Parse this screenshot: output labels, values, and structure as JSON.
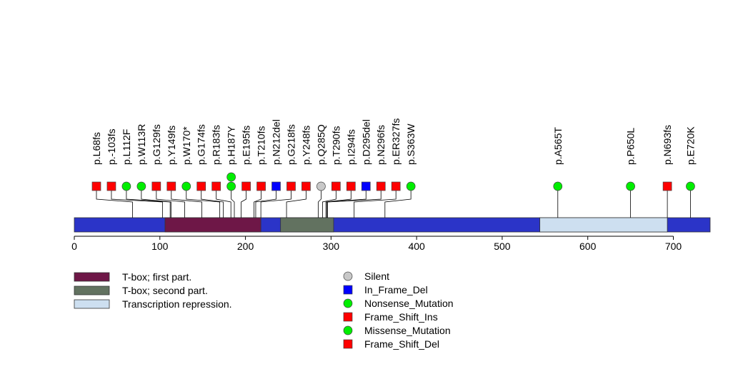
{
  "chart_data": {
    "type": "lollipop",
    "title": "",
    "xlabel": "",
    "ylabel": "",
    "protein_length": 743,
    "xlim": [
      0,
      743
    ],
    "x_ticks": [
      0,
      100,
      200,
      300,
      400,
      500,
      600,
      700
    ],
    "backbone_color": "#2b34c8",
    "domains": [
      {
        "name": "T-box; first part.",
        "start": 106,
        "end": 218,
        "color": "#6e1747"
      },
      {
        "name": "T-box; second part.",
        "start": 241,
        "end": 303,
        "color": "#627260"
      },
      {
        "name": "Transcription repression.",
        "start": 544,
        "end": 693,
        "color": "#cddff0"
      }
    ],
    "mutations": [
      {
        "label": "p.L68fs",
        "position": 68,
        "type": "Frame_Shift_Del",
        "count": 1
      },
      {
        "label": "p.-103fs",
        "position": 103,
        "type": "Frame_Shift_Del",
        "count": 1
      },
      {
        "label": "p.L112F",
        "position": 112,
        "type": "Missense_Mutation",
        "count": 1
      },
      {
        "label": "p.W113R",
        "position": 113,
        "type": "Missense_Mutation",
        "count": 1
      },
      {
        "label": "p.G129fs",
        "position": 129,
        "type": "Frame_Shift_Del",
        "count": 1
      },
      {
        "label": "p.Y149fs",
        "position": 149,
        "type": "Frame_Shift_Del",
        "count": 1
      },
      {
        "label": "p.W170*",
        "position": 170,
        "type": "Nonsense_Mutation",
        "count": 1
      },
      {
        "label": "p.G174fs",
        "position": 174,
        "type": "Frame_Shift_Del",
        "count": 1
      },
      {
        "label": "p.R183fs",
        "position": 183,
        "type": "Frame_Shift_Del",
        "count": 1
      },
      {
        "label": "p.H187Y",
        "position": 187,
        "type": "Missense_Mutation",
        "count": 2
      },
      {
        "label": "p.E195fs",
        "position": 195,
        "type": "Frame_Shift_Del",
        "count": 1
      },
      {
        "label": "p.T210fs",
        "position": 210,
        "type": "Frame_Shift_Del",
        "count": 1
      },
      {
        "label": "p.N212del",
        "position": 212,
        "type": "In_Frame_Del",
        "count": 1
      },
      {
        "label": "p.G218fs",
        "position": 218,
        "type": "Frame_Shift_Del",
        "count": 1
      },
      {
        "label": "p.Y248fs",
        "position": 248,
        "type": "Frame_Shift_Del",
        "count": 1
      },
      {
        "label": "p.Q285Q",
        "position": 285,
        "type": "Silent",
        "count": 1
      },
      {
        "label": "p.T290fs",
        "position": 290,
        "type": "Frame_Shift_Del",
        "count": 1
      },
      {
        "label": "p.I294fs",
        "position": 294,
        "type": "Frame_Shift_Del",
        "count": 1
      },
      {
        "label": "p.D295del",
        "position": 295,
        "type": "In_Frame_Del",
        "count": 1
      },
      {
        "label": "p.N296fs",
        "position": 296,
        "type": "Frame_Shift_Del",
        "count": 1
      },
      {
        "label": "p.ER327fs",
        "position": 327,
        "type": "Frame_Shift_Del",
        "count": 1
      },
      {
        "label": "p.S363W",
        "position": 363,
        "type": "Missense_Mutation",
        "count": 1
      },
      {
        "label": "p.A565T",
        "position": 565,
        "type": "Missense_Mutation",
        "count": 1
      },
      {
        "label": "p.P650L",
        "position": 650,
        "type": "Missense_Mutation",
        "count": 1
      },
      {
        "label": "p.N693fs",
        "position": 693,
        "type": "Frame_Shift_Del",
        "count": 1
      },
      {
        "label": "p.E720K",
        "position": 720,
        "type": "Missense_Mutation",
        "count": 1
      }
    ],
    "legend_domains": [
      {
        "label": "T-box; first part.",
        "color": "#6e1747"
      },
      {
        "label": "T-box; second part.",
        "color": "#627260"
      },
      {
        "label": "Transcription repression.",
        "color": "#cddff0"
      }
    ],
    "legend_mutations": [
      {
        "label": "Silent",
        "shape": "circle",
        "color": "#c8c8c8"
      },
      {
        "label": "In_Frame_Del",
        "shape": "square",
        "color": "#0000ff"
      },
      {
        "label": "Nonsense_Mutation",
        "shape": "circle",
        "color": "#00ee00"
      },
      {
        "label": "Frame_Shift_Ins",
        "shape": "square",
        "color": "#ff0000"
      },
      {
        "label": "Missense_Mutation",
        "shape": "circle",
        "color": "#00ee00"
      },
      {
        "label": "Frame_Shift_Del",
        "shape": "square",
        "color": "#ff0000"
      }
    ],
    "type_styles": {
      "Silent": {
        "shape": "circle",
        "color": "#c8c8c8"
      },
      "In_Frame_Del": {
        "shape": "square",
        "color": "#0000ff"
      },
      "Nonsense_Mutation": {
        "shape": "circle",
        "color": "#00ee00"
      },
      "Frame_Shift_Ins": {
        "shape": "square",
        "color": "#ff0000"
      },
      "Missense_Mutation": {
        "shape": "circle",
        "color": "#00ee00"
      },
      "Frame_Shift_Del": {
        "shape": "square",
        "color": "#ff0000"
      }
    }
  }
}
